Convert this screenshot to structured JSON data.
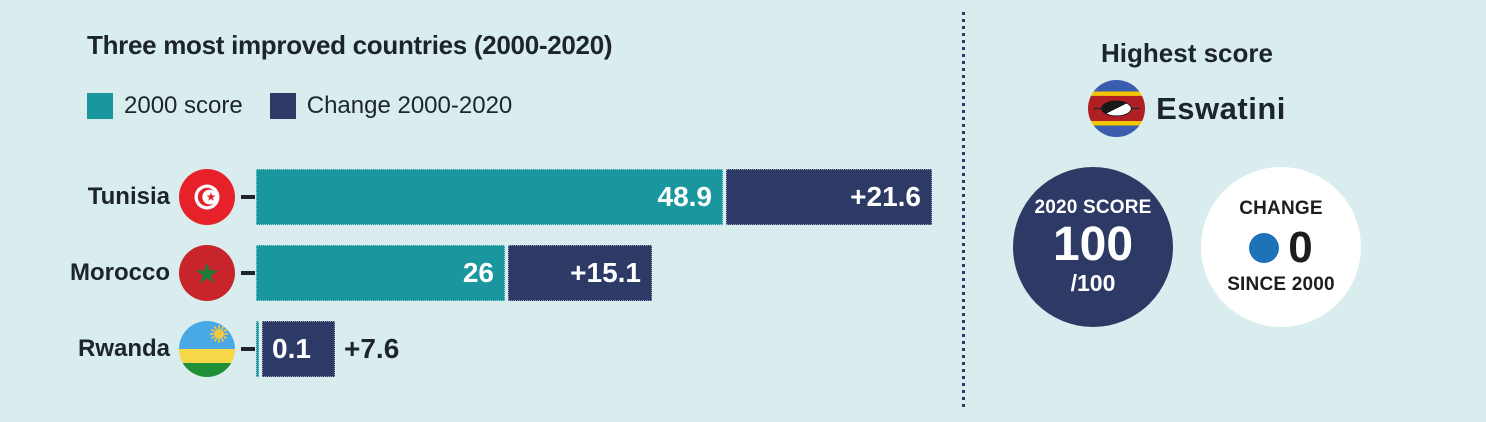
{
  "background_color": "#d9edee",
  "left": {
    "title": "Three most improved countries (2000-2020)",
    "legend": [
      {
        "label": "2000 score",
        "color": "#1a979e"
      },
      {
        "label": "Change 2000-2020",
        "color": "#2d3a66"
      }
    ]
  },
  "chart_data": {
    "type": "bar",
    "orientation": "horizontal",
    "stacked": true,
    "title": "Three most improved countries (2000-2020)",
    "categories": [
      "Tunisia",
      "Morocco",
      "Rwanda"
    ],
    "category_flags": [
      "tunisia-flag",
      "morocco-flag",
      "rwanda-flag"
    ],
    "series": [
      {
        "name": "2000 score",
        "color": "#1a979e",
        "values": [
          48.9,
          26,
          0.1
        ],
        "value_labels": [
          "48.9",
          "26",
          "0.1"
        ]
      },
      {
        "name": "Change 2000-2020",
        "color": "#2d3a66",
        "values": [
          21.6,
          15.1,
          7.6
        ],
        "value_labels": [
          "+21.6",
          "+15.1",
          "+7.6"
        ]
      }
    ],
    "value_axis": {
      "min": 0,
      "max": 72,
      "shown": false
    },
    "legend_position": "top-left",
    "grid": false
  },
  "right": {
    "title": "Highest score",
    "country": "Eswatini",
    "flag": "eswatini-flag",
    "score_circle": {
      "label": "2020 SCORE",
      "value": "100",
      "suffix": "/100",
      "color": "#2d3a66"
    },
    "change_circle": {
      "label": "CHANGE",
      "value": "0",
      "sublabel": "SINCE 2000",
      "dot_color": "#1e72b8"
    }
  }
}
